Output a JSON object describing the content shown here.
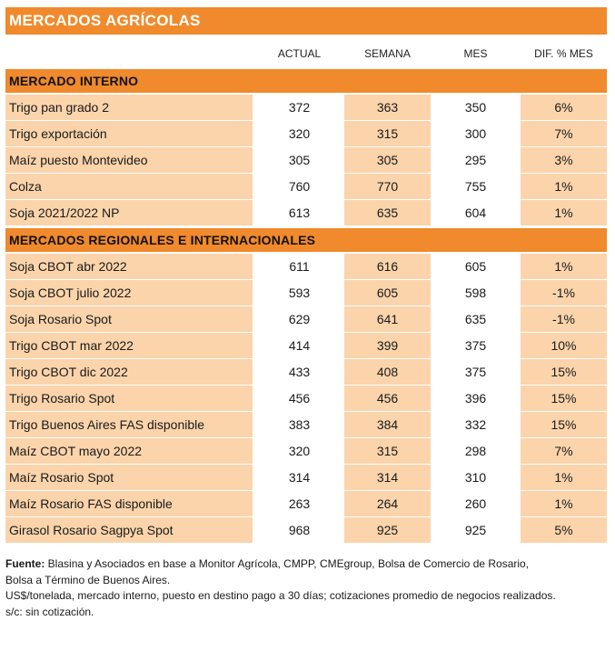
{
  "title": "MERCADOS AGRÍCOLAS",
  "columns": {
    "actual": "ACTUAL",
    "semana": "SEMANA",
    "mes": "MES",
    "dif": "DIF. % MES"
  },
  "sections": {
    "interno": {
      "title": "MERCADO INTERNO",
      "rows": [
        {
          "label": "Trigo pan grado 2",
          "actual": "372",
          "semana": "363",
          "mes": "350",
          "dif": "6%"
        },
        {
          "label": "Trigo exportación",
          "actual": "320",
          "semana": "315",
          "mes": "300",
          "dif": "7%"
        },
        {
          "label": "Maíz puesto Montevideo",
          "actual": "305",
          "semana": "305",
          "mes": "295",
          "dif": "3%"
        },
        {
          "label": "Colza",
          "actual": "760",
          "semana": "770",
          "mes": "755",
          "dif": "1%"
        },
        {
          "label": "Soja 2021/2022 NP",
          "actual": "613",
          "semana": "635",
          "mes": "604",
          "dif": "1%"
        }
      ]
    },
    "regionales": {
      "title": "MERCADOS REGIONALES E INTERNACIONALES",
      "rows": [
        {
          "label": "Soja CBOT abr 2022",
          "actual": "611",
          "semana": "616",
          "mes": "605",
          "dif": "1%"
        },
        {
          "label": "Soja CBOT julio 2022",
          "actual": "593",
          "semana": "605",
          "mes": "598",
          "dif": "-1%"
        },
        {
          "label": "Soja Rosario Spot",
          "actual": "629",
          "semana": "641",
          "mes": "635",
          "dif": "-1%"
        },
        {
          "label": "Trigo CBOT mar 2022",
          "actual": "414",
          "semana": "399",
          "mes": "375",
          "dif": "10%"
        },
        {
          "label": "Trigo CBOT dic 2022",
          "actual": "433",
          "semana": "408",
          "mes": "375",
          "dif": "15%"
        },
        {
          "label": "Trigo Rosario Spot",
          "actual": "456",
          "semana": "456",
          "mes": "396",
          "dif": "15%"
        },
        {
          "label": "Trigo Buenos Aires FAS disponible",
          "actual": "383",
          "semana": "384",
          "mes": "332",
          "dif": "15%"
        },
        {
          "label": "Maíz CBOT mayo 2022",
          "actual": "320",
          "semana": "315",
          "mes": "298",
          "dif": "7%"
        },
        {
          "label": "Maíz Rosario Spot",
          "actual": "314",
          "semana": "314",
          "mes": "310",
          "dif": "1%"
        },
        {
          "label": "Maíz Rosario FAS disponible",
          "actual": "263",
          "semana": "264",
          "mes": "260",
          "dif": "1%"
        },
        {
          "label": "Girasol Rosario Sagpya Spot",
          "actual": "968",
          "semana": "925",
          "mes": "925",
          "dif": "5%"
        }
      ]
    }
  },
  "footer": {
    "fuente_label": "Fuente:",
    "fuente_text": " Blasina y Asociados en base a Monitor Agrícola, CMPP, CMEgroup, Bolsa de Comercio de Rosario,",
    "line2": "Bolsa a Término de Buenos Aires.",
    "line3": "US$/tonelada, mercado interno, puesto en destino pago a 30 días; cotizaciones promedio de negocios realizados.",
    "line4": "s/c: sin cotización."
  },
  "colors": {
    "accent": "#f08a2c",
    "row_tint": "#fbd4ab",
    "white": "#ffffff"
  }
}
